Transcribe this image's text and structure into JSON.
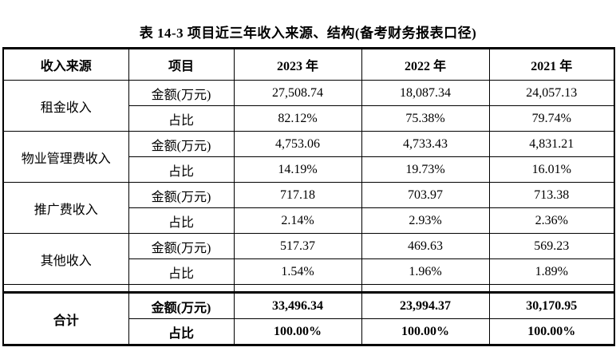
{
  "title": "表 14-3 项目近三年收入来源、结构(备考财务报表口径)",
  "table": {
    "headers": [
      "收入来源",
      "项目",
      "2023 年",
      "2022 年",
      "2021 年"
    ],
    "amount_label": "金额(万元)",
    "ratio_label": "占比",
    "groups": [
      {
        "source": "租金收入",
        "amounts": [
          "27,508.74",
          "18,087.34",
          "24,057.13"
        ],
        "ratios": [
          "82.12%",
          "75.38%",
          "79.74%"
        ]
      },
      {
        "source": "物业管理费收入",
        "amounts": [
          "4,753.06",
          "4,733.43",
          "4,831.21"
        ],
        "ratios": [
          "14.19%",
          "19.73%",
          "16.01%"
        ]
      },
      {
        "source": "推广费收入",
        "amounts": [
          "717.18",
          "703.97",
          "713.38"
        ],
        "ratios": [
          "2.14%",
          "2.93%",
          "2.36%"
        ]
      },
      {
        "source": "其他收入",
        "amounts": [
          "517.37",
          "469.63",
          "569.23"
        ],
        "ratios": [
          "1.54%",
          "1.96%",
          "1.89%"
        ]
      }
    ],
    "total": {
      "source": "合计",
      "amounts": [
        "33,496.34",
        "23,994.37",
        "30,170.95"
      ],
      "ratios": [
        "100.00%",
        "100.00%",
        "100.00%"
      ]
    }
  }
}
